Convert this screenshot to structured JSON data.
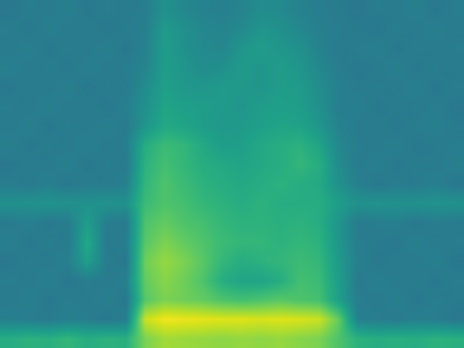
{
  "chart_data": {
    "type": "heatmap",
    "color": "Viridis",
    "zlim": [
      0,
      1
    ],
    "tick_labels": false,
    "grid": false,
    "cells": [
      [
        0.4,
        0.42,
        0.41,
        0.43,
        0.4,
        0.42,
        0.41,
        0.42,
        0.5,
        0.46,
        0.44,
        0.43,
        0.45,
        0.48,
        0.47,
        0.44,
        0.42,
        0.41,
        0.4,
        0.42,
        0.41,
        0.43,
        0.4,
        0.42
      ],
      [
        0.42,
        0.4,
        0.43,
        0.41,
        0.42,
        0.4,
        0.42,
        0.43,
        0.54,
        0.5,
        0.46,
        0.45,
        0.47,
        0.52,
        0.5,
        0.46,
        0.43,
        0.42,
        0.41,
        0.4,
        0.42,
        0.41,
        0.43,
        0.41
      ],
      [
        0.41,
        0.43,
        0.4,
        0.42,
        0.41,
        0.43,
        0.4,
        0.44,
        0.55,
        0.5,
        0.47,
        0.46,
        0.52,
        0.55,
        0.52,
        0.5,
        0.44,
        0.41,
        0.42,
        0.43,
        0.4,
        0.42,
        0.41,
        0.42
      ],
      [
        0.43,
        0.41,
        0.42,
        0.4,
        0.43,
        0.41,
        0.42,
        0.45,
        0.55,
        0.52,
        0.48,
        0.5,
        0.54,
        0.52,
        0.55,
        0.52,
        0.46,
        0.42,
        0.4,
        0.41,
        0.43,
        0.4,
        0.42,
        0.41
      ],
      [
        0.4,
        0.42,
        0.41,
        0.43,
        0.4,
        0.42,
        0.41,
        0.48,
        0.56,
        0.53,
        0.52,
        0.54,
        0.53,
        0.52,
        0.55,
        0.54,
        0.48,
        0.43,
        0.41,
        0.42,
        0.41,
        0.43,
        0.4,
        0.42
      ],
      [
        0.42,
        0.41,
        0.43,
        0.41,
        0.42,
        0.4,
        0.43,
        0.5,
        0.58,
        0.56,
        0.55,
        0.54,
        0.52,
        0.55,
        0.56,
        0.55,
        0.5,
        0.42,
        0.43,
        0.4,
        0.42,
        0.41,
        0.42,
        0.4
      ],
      [
        0.41,
        0.43,
        0.4,
        0.42,
        0.41,
        0.43,
        0.41,
        0.52,
        0.6,
        0.58,
        0.55,
        0.53,
        0.54,
        0.56,
        0.58,
        0.57,
        0.52,
        0.44,
        0.41,
        0.42,
        0.4,
        0.42,
        0.43,
        0.41
      ],
      [
        0.43,
        0.4,
        0.42,
        0.41,
        0.43,
        0.41,
        0.42,
        0.62,
        0.68,
        0.66,
        0.6,
        0.55,
        0.56,
        0.6,
        0.62,
        0.64,
        0.58,
        0.46,
        0.42,
        0.41,
        0.43,
        0.4,
        0.41,
        0.42
      ],
      [
        0.4,
        0.42,
        0.41,
        0.43,
        0.4,
        0.42,
        0.41,
        0.64,
        0.7,
        0.66,
        0.62,
        0.6,
        0.58,
        0.6,
        0.62,
        0.66,
        0.62,
        0.48,
        0.41,
        0.43,
        0.4,
        0.42,
        0.41,
        0.43
      ],
      [
        0.42,
        0.41,
        0.43,
        0.4,
        0.42,
        0.41,
        0.43,
        0.66,
        0.72,
        0.68,
        0.64,
        0.62,
        0.6,
        0.62,
        0.64,
        0.62,
        0.6,
        0.5,
        0.43,
        0.4,
        0.42,
        0.41,
        0.43,
        0.4
      ],
      [
        0.5,
        0.5,
        0.51,
        0.5,
        0.5,
        0.51,
        0.5,
        0.68,
        0.72,
        0.7,
        0.66,
        0.64,
        0.62,
        0.64,
        0.62,
        0.62,
        0.62,
        0.55,
        0.5,
        0.51,
        0.5,
        0.5,
        0.51,
        0.5
      ],
      [
        0.41,
        0.43,
        0.4,
        0.42,
        0.55,
        0.42,
        0.41,
        0.72,
        0.76,
        0.72,
        0.7,
        0.66,
        0.64,
        0.64,
        0.63,
        0.64,
        0.62,
        0.52,
        0.41,
        0.42,
        0.43,
        0.4,
        0.42,
        0.41
      ],
      [
        0.43,
        0.4,
        0.42,
        0.41,
        0.6,
        0.41,
        0.42,
        0.74,
        0.8,
        0.76,
        0.72,
        0.68,
        0.66,
        0.66,
        0.64,
        0.66,
        0.64,
        0.52,
        0.42,
        0.41,
        0.4,
        0.43,
        0.41,
        0.42
      ],
      [
        0.4,
        0.42,
        0.41,
        0.43,
        0.56,
        0.42,
        0.4,
        0.78,
        0.84,
        0.8,
        0.74,
        0.66,
        0.62,
        0.64,
        0.66,
        0.68,
        0.66,
        0.54,
        0.43,
        0.4,
        0.42,
        0.41,
        0.43,
        0.4
      ],
      [
        0.42,
        0.41,
        0.43,
        0.4,
        0.42,
        0.41,
        0.43,
        0.76,
        0.82,
        0.78,
        0.72,
        0.62,
        0.58,
        0.58,
        0.62,
        0.7,
        0.68,
        0.55,
        0.41,
        0.43,
        0.41,
        0.42,
        0.4,
        0.42
      ],
      [
        0.41,
        0.43,
        0.4,
        0.42,
        0.41,
        0.43,
        0.4,
        0.74,
        0.8,
        0.78,
        0.76,
        0.72,
        0.7,
        0.72,
        0.74,
        0.72,
        0.7,
        0.56,
        0.42,
        0.41,
        0.43,
        0.4,
        0.42,
        0.41
      ],
      [
        0.43,
        0.42,
        0.41,
        0.43,
        0.42,
        0.4,
        0.42,
        0.92,
        0.98,
        0.97,
        0.96,
        0.95,
        0.95,
        0.94,
        0.95,
        0.94,
        0.92,
        0.76,
        0.43,
        0.42,
        0.41,
        0.43,
        0.42,
        0.4
      ],
      [
        0.62,
        0.64,
        0.63,
        0.66,
        0.62,
        0.64,
        0.63,
        0.8,
        0.86,
        0.85,
        0.84,
        0.83,
        0.84,
        0.83,
        0.84,
        0.82,
        0.8,
        0.72,
        0.64,
        0.62,
        0.63,
        0.62,
        0.64,
        0.63
      ]
    ]
  }
}
